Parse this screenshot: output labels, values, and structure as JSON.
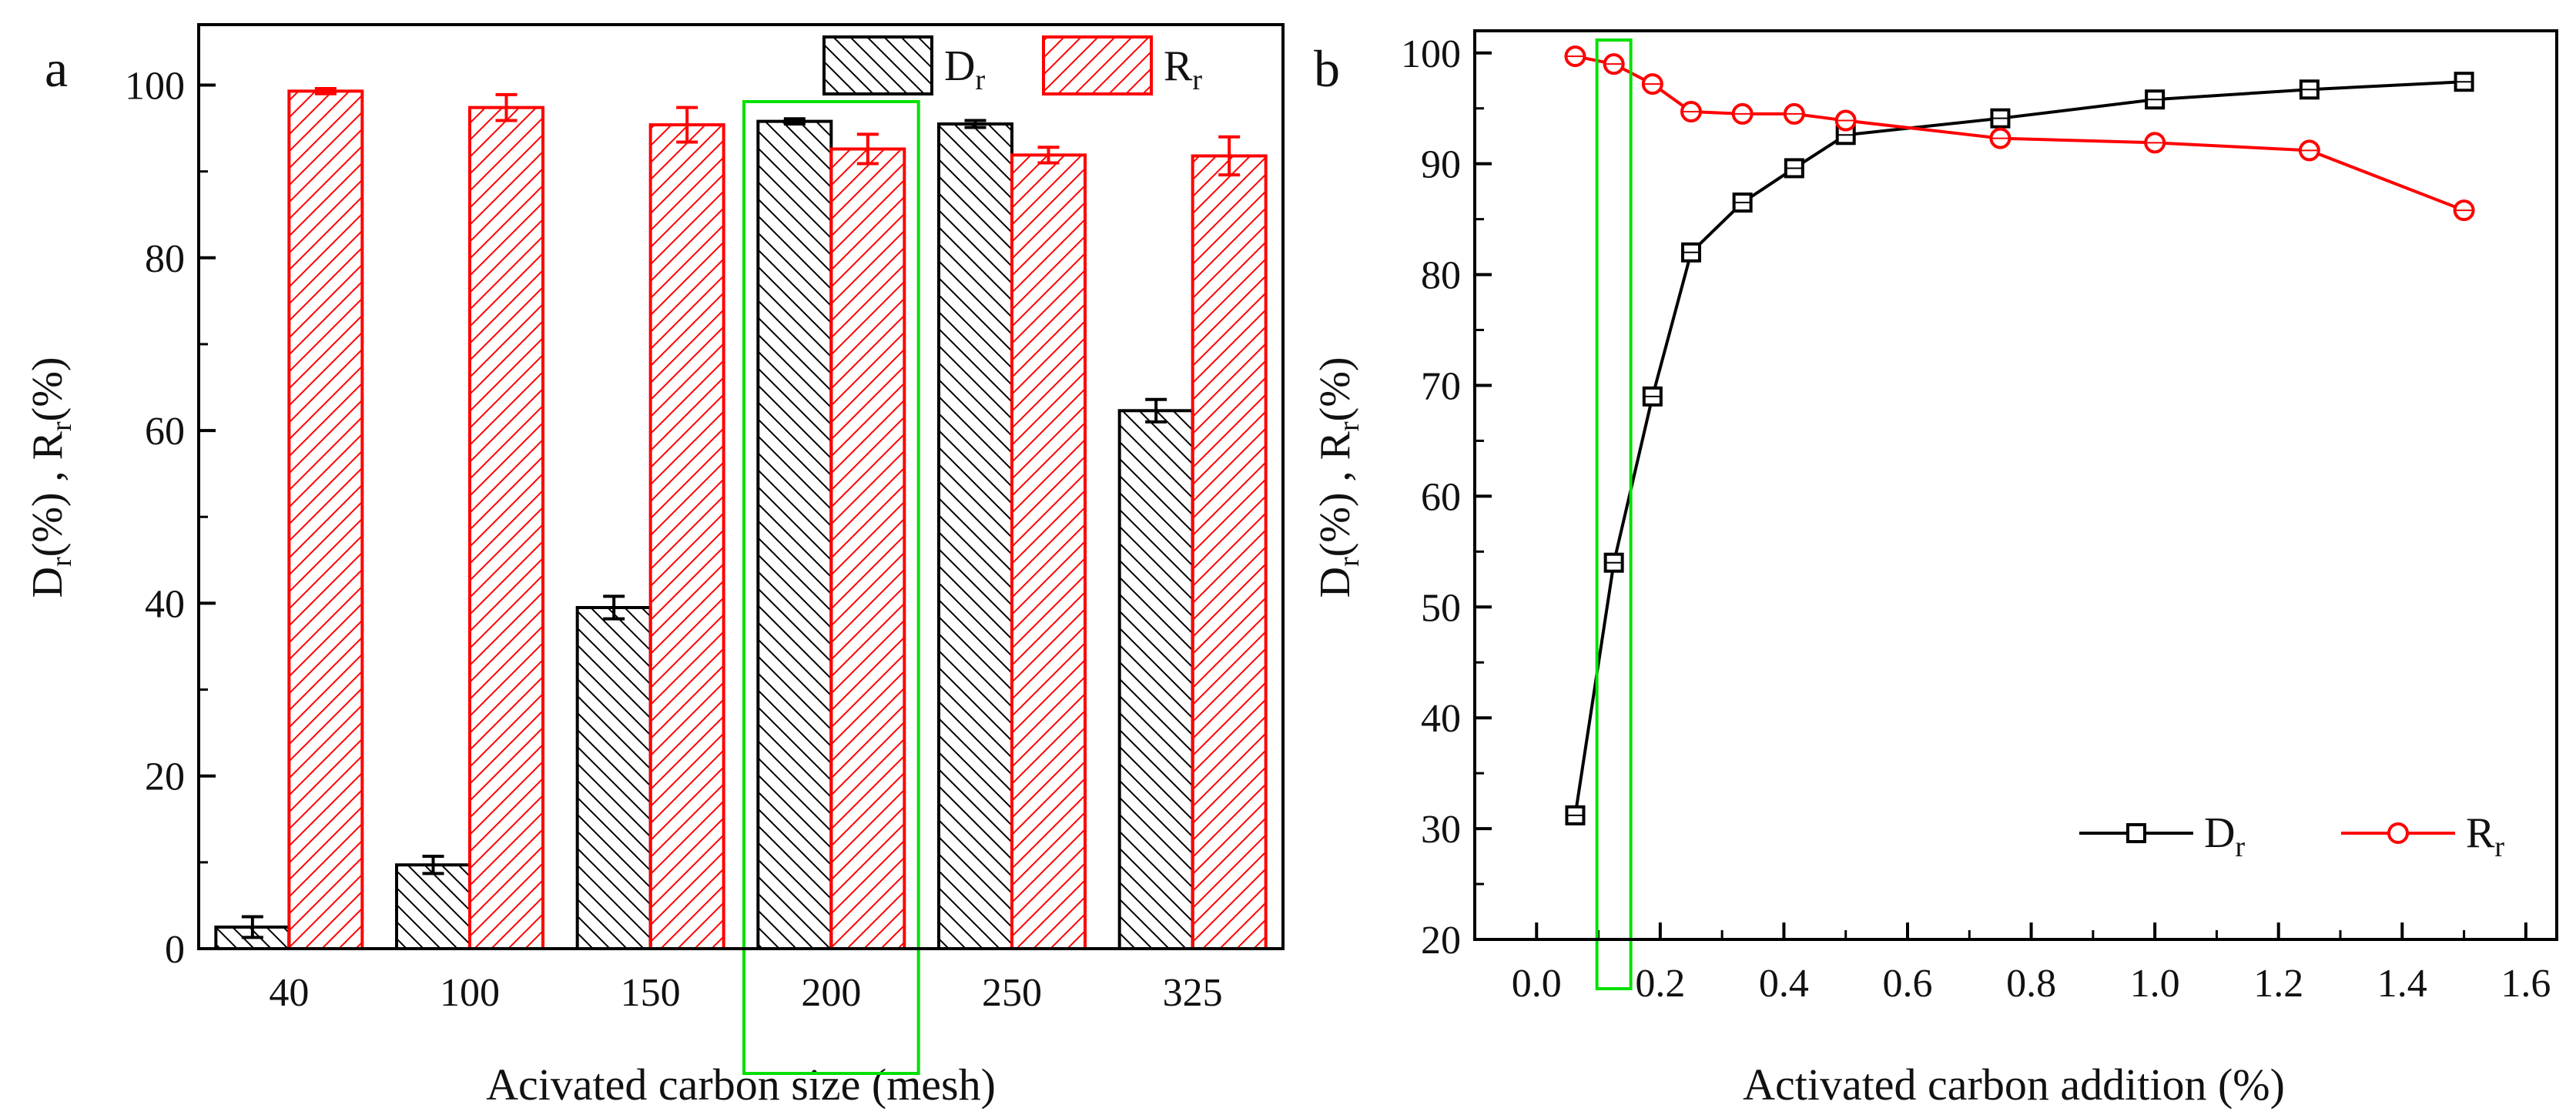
{
  "chart_data": [
    {
      "type": "bar",
      "panel_label": "a",
      "xlabel": "Acivated carbon size (mesh)",
      "ylabel": {
        "d": "D",
        "sub1": "r",
        "mid": "(%) , R",
        "sub2": "r",
        "end": "(%)"
      },
      "categories": [
        "40",
        "100",
        "150",
        "200",
        "250",
        "325"
      ],
      "ylim": [
        0,
        107
      ],
      "yticks": [
        0,
        20,
        40,
        60,
        80,
        100
      ],
      "series": [
        {
          "name": "D",
          "sub": "r",
          "color": "#000000",
          "values": [
            2.5,
            9.7,
            39.5,
            95.8,
            95.5,
            62.3
          ],
          "errors": [
            1.2,
            1.0,
            1.3,
            0.3,
            0.4,
            1.3
          ]
        },
        {
          "name": "R",
          "sub": "r",
          "color": "#ff0000",
          "values": [
            99.3,
            97.4,
            95.4,
            92.6,
            91.9,
            91.8
          ],
          "errors": [
            0.3,
            1.5,
            2.0,
            1.7,
            0.9,
            2.2
          ]
        }
      ],
      "highlight_category": "200",
      "legend_position": "top-right",
      "highlight_color": "#00e000"
    },
    {
      "type": "line",
      "panel_label": "b",
      "xlabel": "Activated carbon addition (%)",
      "ylabel": {
        "d": "D",
        "sub1": "r",
        "mid": "(%) , R",
        "sub2": "r",
        "end": "(%)"
      },
      "xlim": [
        -0.1,
        1.65
      ],
      "ylim": [
        20,
        102
      ],
      "xticks": [
        "0.0",
        "0.2",
        "0.4",
        "0.6",
        "0.8",
        "1.0",
        "1.2",
        "1.4",
        "1.6"
      ],
      "yticks": [
        20,
        30,
        40,
        50,
        60,
        70,
        80,
        90,
        100
      ],
      "x": [
        0.0625,
        0.125,
        0.1875,
        0.25,
        0.333,
        0.4167,
        0.5,
        0.75,
        1.0,
        1.25,
        1.5
      ],
      "series": [
        {
          "name": "D",
          "sub": "r",
          "color": "#000000",
          "marker": "square",
          "values": [
            31.2,
            54.0,
            69.0,
            82.0,
            86.5,
            89.6,
            92.6,
            94.1,
            95.8,
            96.7,
            97.4
          ]
        },
        {
          "name": "R",
          "sub": "r",
          "color": "#ff0000",
          "marker": "circle",
          "values": [
            99.7,
            99.0,
            97.2,
            94.7,
            94.5,
            94.5,
            93.9,
            92.3,
            91.9,
            91.2,
            85.8
          ]
        }
      ],
      "highlight_x": 0.125,
      "legend_position": "bottom-right",
      "highlight_color": "#00e000"
    }
  ]
}
